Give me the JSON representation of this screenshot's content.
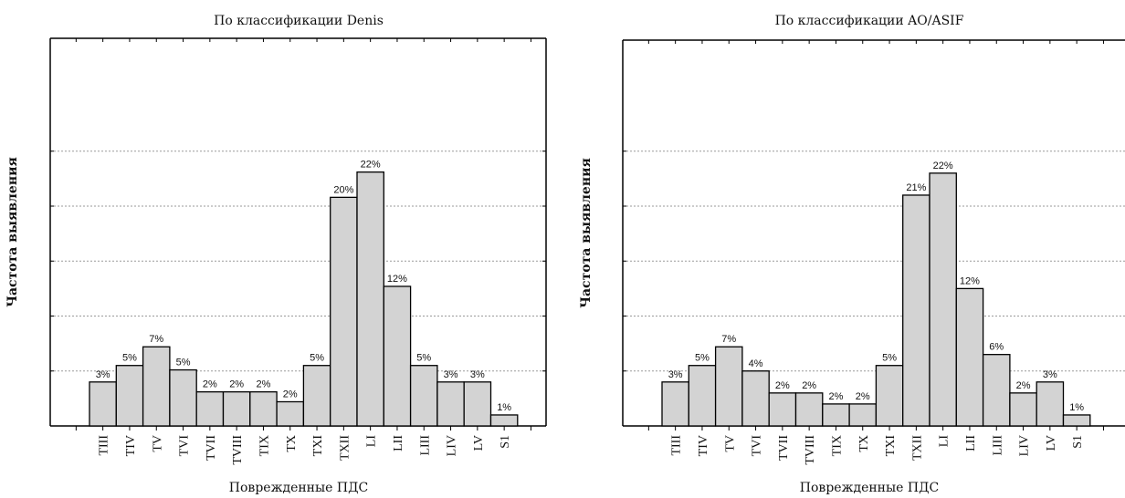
{
  "chart_data": [
    {
      "type": "bar",
      "title": "По  классификации Denis",
      "ylabel": "Частота выявления",
      "xlabel": "Поврежденные ПДС",
      "categories": [
        "TIII",
        "TIV",
        "TV",
        "TVI",
        "TVII",
        "TVIII",
        "TIX",
        "TX",
        "TXI",
        "TXII",
        "LI",
        "LII",
        "LIII",
        "LIV",
        "LV",
        "S1"
      ],
      "values": [
        3,
        5,
        7,
        5,
        2,
        2,
        2,
        2,
        5,
        20,
        22,
        12,
        5,
        3,
        3,
        1
      ],
      "bar_heights_pct": [
        4,
        5.5,
        7.2,
        5.1,
        3.1,
        3.1,
        3.1,
        2.2,
        5.5,
        20.8,
        23.1,
        12.7,
        5.5,
        4,
        4,
        1
      ],
      "labels": [
        "3%",
        "5%",
        "7%",
        "5%",
        "2%",
        "2%",
        "2%",
        "2%",
        "5%",
        "20%",
        "22%",
        "12%",
        "5%",
        "3%",
        "3%",
        "1%"
      ],
      "ylim": [
        0,
        27
      ],
      "gridlines": [
        5,
        10,
        15,
        20,
        25
      ],
      "grid": true,
      "bar_color": "#d3d3d3"
    },
    {
      "type": "bar",
      "title": "По  классификации AO/ASIF",
      "ylabel": "Частота выявления",
      "xlabel": "Поврежденные ПДС",
      "categories": [
        "TIII",
        "TIV",
        "TV",
        "TVI",
        "TVII",
        "TVIII",
        "TIX",
        "TX",
        "TXI",
        "TXII",
        "LI",
        "LII",
        "LIII",
        "LIV",
        "LV",
        "S1"
      ],
      "values": [
        3,
        5,
        7,
        4,
        2,
        2,
        2,
        2,
        5,
        21,
        22,
        12,
        6,
        2,
        3,
        1
      ],
      "bar_heights_pct": [
        4,
        5.5,
        7.2,
        5,
        3,
        3,
        2,
        2,
        5.5,
        21,
        23,
        12.5,
        6.5,
        3,
        4,
        1
      ],
      "labels": [
        "3%",
        "5%",
        "7%",
        "4%",
        "2%",
        "2%",
        "2%",
        "2%",
        "5%",
        "21%",
        "22%",
        "12%",
        "6%",
        "2%",
        "3%",
        "1%"
      ],
      "ylim": [
        0,
        27
      ],
      "gridlines": [
        5,
        10,
        15,
        20,
        25
      ],
      "grid": true,
      "bar_color": "#d3d3d3"
    }
  ]
}
